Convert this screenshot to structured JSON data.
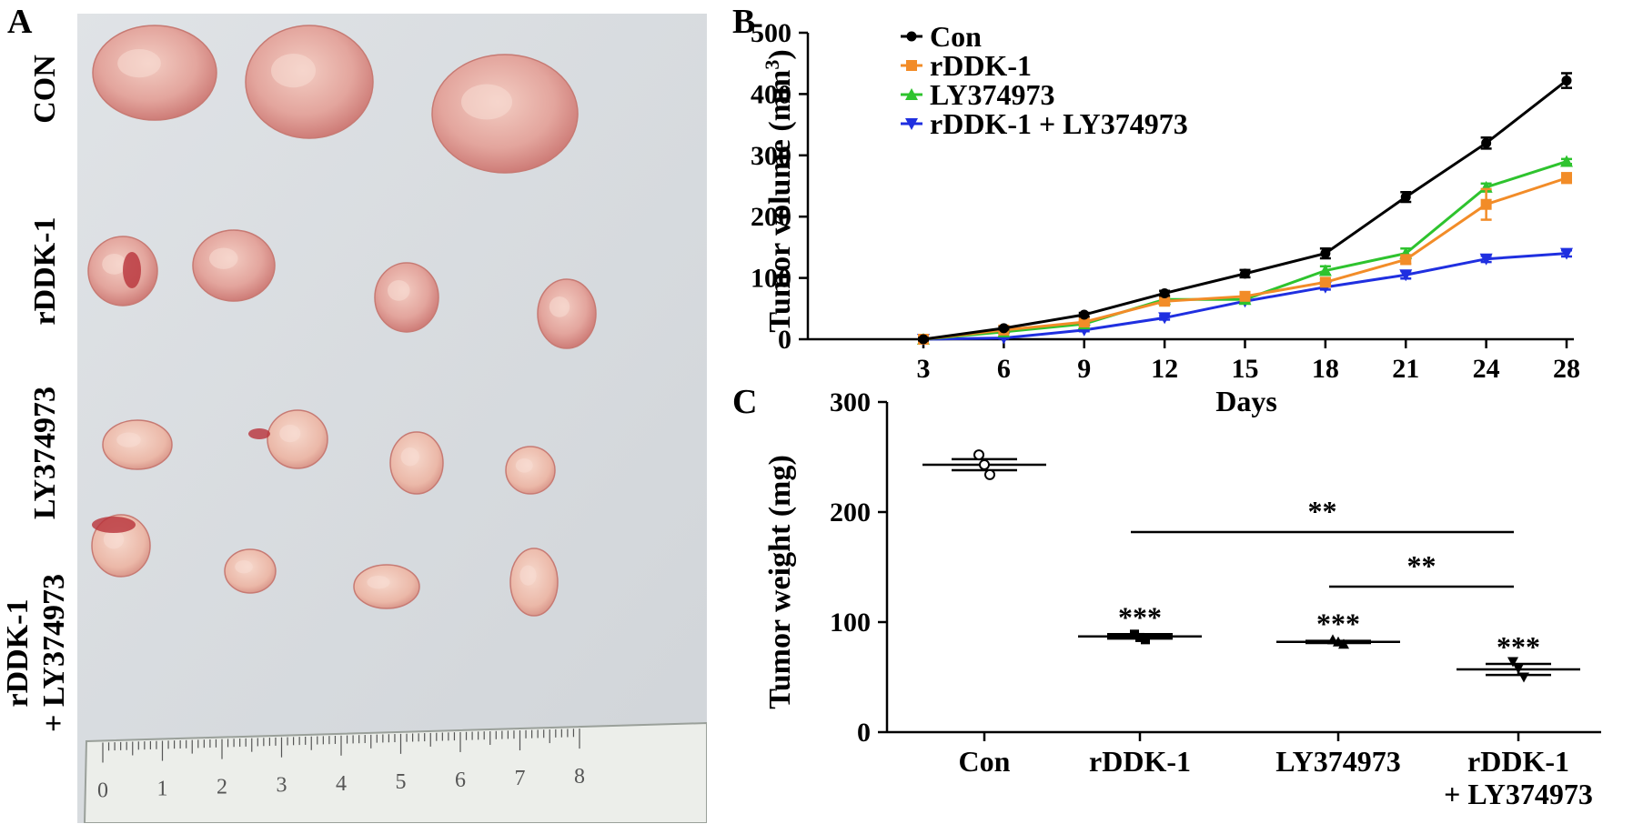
{
  "panels": {
    "a": {
      "letter": "A"
    },
    "b": {
      "letter": "B"
    },
    "c": {
      "letter": "C"
    }
  },
  "photo": {
    "row_labels": [
      "CON",
      "rDDK-1",
      "LY374973",
      "rDDK-1",
      "+ LY374973"
    ],
    "ruler_numbers": [
      "0",
      "1",
      "2",
      "3",
      "4",
      "5",
      "6",
      "7",
      "8"
    ],
    "colors": {
      "background": "#d9dde1",
      "tumor": "#e7a9a3",
      "tumor_dark": "#c9736f",
      "blood": "#b8323a"
    }
  },
  "chart_data": [
    {
      "type": "line",
      "xlabel": "Days",
      "ylabel": "Tumor volume (mm",
      "ylabel_superscript": "3",
      "ylabel_close": ")",
      "x": [
        3,
        6,
        9,
        12,
        15,
        18,
        21,
        24,
        28
      ],
      "ylim": [
        0,
        500
      ],
      "yticks": [
        0,
        100,
        200,
        300,
        400,
        500
      ],
      "grid": false,
      "legend": "top-left",
      "series": [
        {
          "name": "Con",
          "color": "#000000",
          "marker": "circle",
          "values": [
            0,
            18,
            40,
            75,
            107,
            140,
            232,
            320,
            422
          ],
          "err": [
            2,
            2,
            3,
            4,
            6,
            8,
            8,
            9,
            12
          ]
        },
        {
          "name": "rDDK-1",
          "color": "#f28c28",
          "marker": "square",
          "values": [
            0,
            15,
            28,
            62,
            70,
            93,
            130,
            220,
            263
          ],
          "err": [
            1,
            2,
            2,
            3,
            4,
            5,
            7,
            25,
            8
          ]
        },
        {
          "name": "LY374973",
          "color": "#2ec32e",
          "marker": "triangle-up",
          "values": [
            0,
            12,
            25,
            65,
            65,
            112,
            140,
            248,
            290
          ],
          "err": [
            1,
            2,
            2,
            3,
            4,
            7,
            8,
            6,
            4
          ]
        },
        {
          "name": "rDDK-1 + LY374973",
          "color": "#1f2fe0",
          "marker": "triangle-down",
          "values": [
            0,
            2,
            15,
            35,
            62,
            85,
            105,
            131,
            140
          ],
          "err": [
            1,
            1,
            2,
            3,
            3,
            4,
            6,
            5,
            5
          ]
        }
      ]
    },
    {
      "type": "scatter",
      "ylabel": "Tumor weight (mg)",
      "categories": [
        "Con",
        "rDDK-1",
        "LY374973",
        "rDDK-1"
      ],
      "category_line2": [
        "",
        "",
        "",
        "+ LY374973"
      ],
      "ylim": [
        0,
        300
      ],
      "yticks": [
        0,
        100,
        200,
        300
      ],
      "means": [
        243,
        87,
        82,
        57
      ],
      "sd": [
        5,
        2,
        1,
        5
      ],
      "points": [
        [
          252,
          243,
          234
        ],
        [
          89,
          86,
          84
        ],
        [
          84,
          82,
          80
        ],
        [
          64,
          58,
          50
        ]
      ],
      "significance": [
        "",
        "***",
        "***",
        "***"
      ],
      "brackets": [
        {
          "from": 1,
          "to": 3,
          "label": "**"
        },
        {
          "from": 2,
          "to": 3,
          "label": "**"
        }
      ]
    }
  ]
}
